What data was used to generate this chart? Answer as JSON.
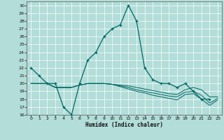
{
  "xlabel": "Humidex (Indice chaleur)",
  "background_color": "#b2ddd8",
  "grid_color": "#ffffff",
  "line_color": "#006666",
  "xlim": [
    -0.5,
    23.5
  ],
  "ylim": [
    16,
    30.5
  ],
  "yticks": [
    16,
    17,
    18,
    19,
    20,
    21,
    22,
    23,
    24,
    25,
    26,
    27,
    28,
    29,
    30
  ],
  "xticks": [
    0,
    1,
    2,
    3,
    4,
    5,
    6,
    7,
    8,
    9,
    10,
    11,
    12,
    13,
    14,
    15,
    16,
    17,
    18,
    19,
    20,
    21,
    22,
    23
  ],
  "main_x": [
    0,
    1,
    2,
    3,
    4,
    5,
    6,
    7,
    8,
    9,
    10,
    11,
    12,
    13,
    14,
    15,
    16,
    17,
    18,
    19,
    20,
    21,
    22
  ],
  "main_y": [
    22,
    21,
    20,
    20,
    17,
    16,
    20,
    23,
    24,
    26,
    27,
    27.5,
    30,
    28,
    22,
    20.5,
    20,
    20,
    19.5,
    20,
    19,
    18,
    18
  ],
  "flat1_x": [
    0,
    1,
    2,
    3,
    5,
    6,
    7,
    8,
    9,
    10,
    11,
    12,
    13,
    14,
    15,
    16,
    17,
    18,
    19,
    20,
    21,
    22,
    23
  ],
  "flat1_y": [
    20,
    20,
    20,
    19.5,
    19.5,
    19.8,
    20,
    20,
    20,
    19.9,
    19.8,
    19.7,
    19.5,
    19.3,
    19.1,
    18.9,
    18.7,
    18.6,
    19.2,
    19.5,
    19.2,
    18.3,
    18.3
  ],
  "flat2_x": [
    0,
    1,
    2,
    3,
    5,
    6,
    7,
    8,
    9,
    10,
    11,
    12,
    13,
    14,
    15,
    16,
    17,
    18,
    19,
    20,
    21,
    22,
    23
  ],
  "flat2_y": [
    20,
    20,
    20,
    19.5,
    19.5,
    19.8,
    20,
    20,
    20,
    19.9,
    19.7,
    19.5,
    19.2,
    19.0,
    18.8,
    18.6,
    18.4,
    18.3,
    18.9,
    19.0,
    18.5,
    17.5,
    18.1
  ],
  "flat3_x": [
    0,
    1,
    2,
    3,
    5,
    6,
    7,
    8,
    9,
    10,
    11,
    12,
    13,
    14,
    15,
    16,
    17,
    18,
    19,
    20,
    21,
    22,
    23
  ],
  "flat3_y": [
    20,
    20,
    20,
    19.5,
    19.5,
    19.8,
    20,
    20,
    20,
    19.9,
    19.6,
    19.3,
    19.0,
    18.8,
    18.5,
    18.3,
    18.1,
    17.9,
    18.6,
    18.7,
    18.0,
    17.2,
    17.9
  ]
}
